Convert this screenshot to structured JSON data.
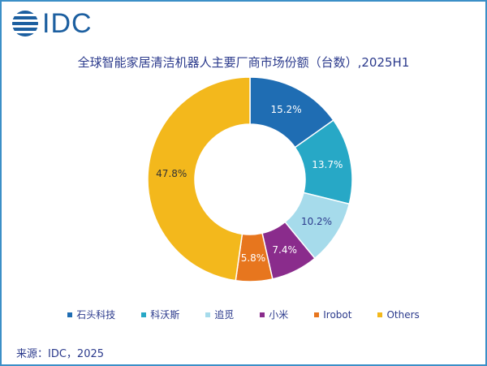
{
  "logo": {
    "text": "IDC"
  },
  "chart_data": {
    "type": "pie",
    "donut": true,
    "title": "全球智能家居清洁机器人主要厂商市场份额（台数）,2025H1",
    "categories": [
      "石头科技",
      "科沃斯",
      "追觅",
      "小米",
      "Irobot",
      "Others"
    ],
    "values": [
      15.2,
      13.7,
      10.2,
      7.4,
      5.8,
      47.8
    ],
    "labels": [
      "15.2%",
      "13.7%",
      "10.2%",
      "7.4%",
      "5.8%",
      "47.8%"
    ],
    "colors": [
      "#1f6db3",
      "#27a8c6",
      "#a6dbeb",
      "#8a2c8c",
      "#e7761e",
      "#f3b81c"
    ],
    "legend_position": "bottom",
    "start": "12 o'clock, clockwise"
  },
  "source": "来源：IDC，2025"
}
